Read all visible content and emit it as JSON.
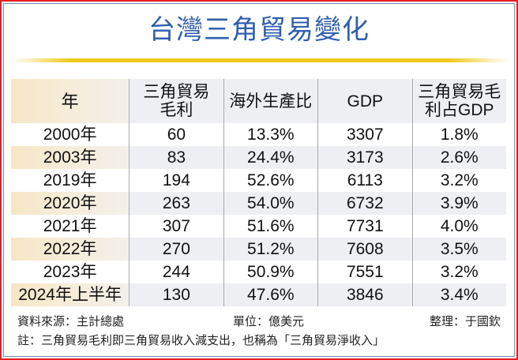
{
  "title": "台灣三角貿易變化",
  "table": {
    "headers": [
      {
        "line1": "年",
        "line2": ""
      },
      {
        "line1": "三角貿易",
        "line2": "毛利"
      },
      {
        "line1": "海外生產比",
        "line2": ""
      },
      {
        "line1": "GDP",
        "line2": ""
      },
      {
        "line1": "三角貿易毛",
        "line2": "利占GDP"
      }
    ],
    "rows": [
      {
        "year": "2000年",
        "margin": "60",
        "overseas": "13.3%",
        "gdp": "3307",
        "ratio": "1.8%"
      },
      {
        "year": "2003年",
        "margin": "83",
        "overseas": "24.4%",
        "gdp": "3173",
        "ratio": "2.6%"
      },
      {
        "year": "2019年",
        "margin": "194",
        "overseas": "52.6%",
        "gdp": "6113",
        "ratio": "3.2%"
      },
      {
        "year": "2020年",
        "margin": "263",
        "overseas": "54.0%",
        "gdp": "6732",
        "ratio": "3.9%"
      },
      {
        "year": "2021年",
        "margin": "307",
        "overseas": "51.6%",
        "gdp": "7731",
        "ratio": "4.0%"
      },
      {
        "year": "2022年",
        "margin": "270",
        "overseas": "51.2%",
        "gdp": "7608",
        "ratio": "3.5%"
      },
      {
        "year": "2023年",
        "margin": "244",
        "overseas": "50.9%",
        "gdp": "7551",
        "ratio": "3.2%"
      },
      {
        "year": "2024年上半年",
        "margin": "130",
        "overseas": "47.6%",
        "gdp": "3846",
        "ratio": "3.4%"
      }
    ]
  },
  "footer": {
    "source": "資料來源：主計總處",
    "unit": "單位：億美元",
    "editor": "整理：于國欽",
    "note": "註：三角貿易毛利即三角貿易收入減支出，也稱為「三角貿易淨收入」"
  },
  "colors": {
    "title": "#2f5fae",
    "outer_border": "#e51c23",
    "inner_border": "#6f8fc7",
    "gold_rule": "#efc91a",
    "year_shade": "#f6e6c5",
    "row_shade": "#edeff2"
  },
  "chart_data": {
    "type": "table",
    "title": "台灣三角貿易變化",
    "unit": "億美元",
    "columns": [
      "年",
      "三角貿易毛利",
      "海外生產比",
      "GDP",
      "三角貿易毛利占GDP"
    ],
    "rows": [
      [
        "2000年",
        60,
        "13.3%",
        3307,
        "1.8%"
      ],
      [
        "2003年",
        83,
        "24.4%",
        3173,
        "2.6%"
      ],
      [
        "2019年",
        194,
        "52.6%",
        6113,
        "3.2%"
      ],
      [
        "2020年",
        263,
        "54.0%",
        6732,
        "3.9%"
      ],
      [
        "2021年",
        307,
        "51.6%",
        7731,
        "4.0%"
      ],
      [
        "2022年",
        270,
        "51.2%",
        7608,
        "3.5%"
      ],
      [
        "2023年",
        244,
        "50.9%",
        7551,
        "3.2%"
      ],
      [
        "2024年上半年",
        130,
        "47.6%",
        3846,
        "3.4%"
      ]
    ],
    "source": "主計總處",
    "note": "三角貿易毛利即三角貿易收入減支出，也稱為「三角貿易淨收入」"
  }
}
